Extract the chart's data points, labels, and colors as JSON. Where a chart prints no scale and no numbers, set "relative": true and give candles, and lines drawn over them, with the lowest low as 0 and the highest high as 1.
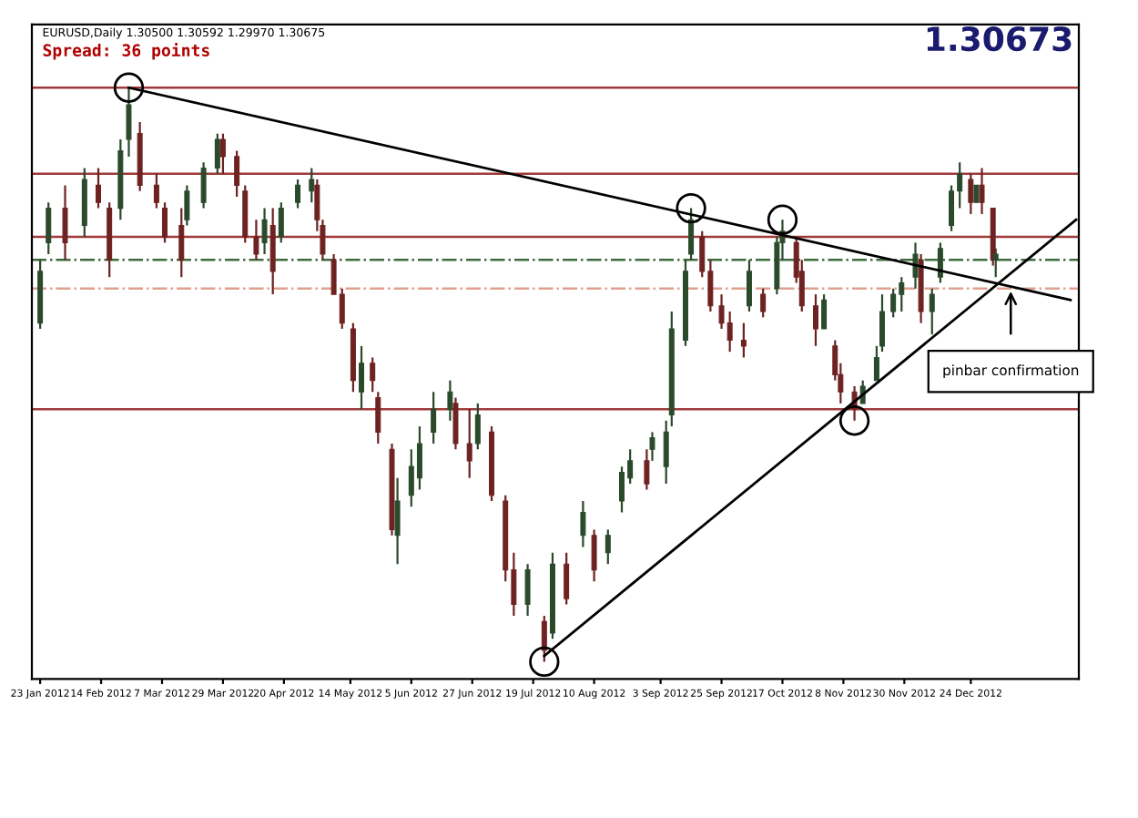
{
  "chart_data": {
    "type": "candlestick",
    "relative": true,
    "title": "EURUSD,Daily 1.30500 1.30592 1.29970 1.30675",
    "subtitle": "Spread: 36 points",
    "annotations": [
      "1.30673",
      "pinbar confirmation"
    ],
    "x": [
      "2012-01-23",
      "2012-01-26",
      "2012-02-01",
      "2012-02-08",
      "2012-02-13",
      "2012-02-17",
      "2012-02-21",
      "2012-02-24",
      "2012-02-28",
      "2012-03-05",
      "2012-03-08",
      "2012-03-14",
      "2012-03-16",
      "2012-03-22",
      "2012-03-27",
      "2012-03-29",
      "2012-04-03",
      "2012-04-06",
      "2012-04-10",
      "2012-04-13",
      "2012-04-16",
      "2012-04-19",
      "2012-04-25",
      "2012-04-30",
      "2012-05-02",
      "2012-05-04",
      "2012-05-08",
      "2012-05-11",
      "2012-05-15",
      "2012-05-18",
      "2012-05-22",
      "2012-05-24",
      "2012-05-29",
      "2012-05-31",
      "2012-06-05",
      "2012-06-08",
      "2012-06-13",
      "2012-06-19",
      "2012-06-21",
      "2012-06-26",
      "2012-06-29",
      "2012-07-04",
      "2012-07-09",
      "2012-07-12",
      "2012-07-17",
      "2012-07-23",
      "2012-07-26",
      "2012-07-31",
      "2012-08-06",
      "2012-08-10",
      "2012-08-15",
      "2012-08-20",
      "2012-08-23",
      "2012-08-29",
      "2012-08-31",
      "2012-09-05",
      "2012-09-07",
      "2012-09-12",
      "2012-09-14",
      "2012-09-18",
      "2012-09-21",
      "2012-09-25",
      "2012-09-28",
      "2012-10-03",
      "2012-10-05",
      "2012-10-10",
      "2012-10-15",
      "2012-10-17",
      "2012-10-22",
      "2012-10-24",
      "2012-10-29",
      "2012-11-01",
      "2012-11-05",
      "2012-11-07",
      "2012-11-12",
      "2012-11-15",
      "2012-11-20",
      "2012-11-22",
      "2012-11-26",
      "2012-11-29",
      "2012-12-04",
      "2012-12-06",
      "2012-12-10",
      "2012-12-13",
      "2012-12-17",
      "2012-12-20",
      "2012-12-24",
      "2012-12-26",
      "2012-12-28",
      "2013-01-01",
      "2013-01-02"
    ],
    "ohlc": [
      [
        0.59,
        0.7,
        0.58,
        0.68
      ],
      [
        0.73,
        0.8,
        0.71,
        0.79
      ],
      [
        0.79,
        0.83,
        0.7,
        0.73
      ],
      [
        0.76,
        0.86,
        0.74,
        0.84
      ],
      [
        0.83,
        0.86,
        0.79,
        0.8
      ],
      [
        0.79,
        0.8,
        0.67,
        0.7
      ],
      [
        0.79,
        0.91,
        0.77,
        0.89
      ],
      [
        0.91,
        1.0,
        0.88,
        0.97
      ],
      [
        0.92,
        0.94,
        0.82,
        0.83
      ],
      [
        0.83,
        0.85,
        0.79,
        0.8
      ],
      [
        0.79,
        0.8,
        0.73,
        0.74
      ],
      [
        0.76,
        0.79,
        0.67,
        0.7
      ],
      [
        0.77,
        0.83,
        0.76,
        0.82
      ],
      [
        0.8,
        0.87,
        0.79,
        0.86
      ],
      [
        0.86,
        0.92,
        0.85,
        0.91
      ],
      [
        0.91,
        0.92,
        0.85,
        0.88
      ],
      [
        0.88,
        0.89,
        0.81,
        0.83
      ],
      [
        0.82,
        0.83,
        0.73,
        0.74
      ],
      [
        0.74,
        0.77,
        0.7,
        0.71
      ],
      [
        0.73,
        0.79,
        0.71,
        0.77
      ],
      [
        0.76,
        0.79,
        0.64,
        0.68
      ],
      [
        0.74,
        0.8,
        0.73,
        0.79
      ],
      [
        0.8,
        0.84,
        0.79,
        0.83
      ],
      [
        0.82,
        0.86,
        0.8,
        0.84
      ],
      [
        0.83,
        0.84,
        0.75,
        0.77
      ],
      [
        0.76,
        0.77,
        0.7,
        0.71
      ],
      [
        0.7,
        0.71,
        0.64,
        0.64
      ],
      [
        0.64,
        0.65,
        0.58,
        0.59
      ],
      [
        0.58,
        0.59,
        0.47,
        0.49
      ],
      [
        0.47,
        0.55,
        0.44,
        0.52
      ],
      [
        0.52,
        0.53,
        0.47,
        0.49
      ],
      [
        0.46,
        0.47,
        0.38,
        0.4
      ],
      [
        0.37,
        0.38,
        0.22,
        0.23
      ],
      [
        0.22,
        0.32,
        0.17,
        0.28
      ],
      [
        0.29,
        0.37,
        0.27,
        0.34
      ],
      [
        0.32,
        0.41,
        0.3,
        0.38
      ],
      [
        0.4,
        0.47,
        0.38,
        0.44
      ],
      [
        0.44,
        0.49,
        0.42,
        0.47
      ],
      [
        0.45,
        0.46,
        0.37,
        0.38
      ],
      [
        0.38,
        0.44,
        0.32,
        0.35
      ],
      [
        0.38,
        0.45,
        0.37,
        0.43
      ],
      [
        0.4,
        0.41,
        0.28,
        0.29
      ],
      [
        0.28,
        0.29,
        0.14,
        0.16
      ],
      [
        0.16,
        0.19,
        0.08,
        0.1
      ],
      [
        0.1,
        0.17,
        0.08,
        0.16
      ],
      [
        0.07,
        0.08,
        0.0,
        0.02
      ],
      [
        0.05,
        0.19,
        0.04,
        0.17
      ],
      [
        0.17,
        0.19,
        0.1,
        0.11
      ],
      [
        0.22,
        0.28,
        0.2,
        0.26
      ],
      [
        0.22,
        0.23,
        0.14,
        0.16
      ],
      [
        0.19,
        0.23,
        0.17,
        0.22
      ],
      [
        0.28,
        0.34,
        0.26,
        0.33
      ],
      [
        0.32,
        0.37,
        0.31,
        0.35
      ],
      [
        0.35,
        0.37,
        0.3,
        0.31
      ],
      [
        0.37,
        0.4,
        0.35,
        0.39
      ],
      [
        0.34,
        0.42,
        0.31,
        0.4
      ],
      [
        0.43,
        0.61,
        0.41,
        0.58
      ],
      [
        0.56,
        0.7,
        0.55,
        0.68
      ],
      [
        0.71,
        0.79,
        0.7,
        0.77
      ],
      [
        0.74,
        0.75,
        0.67,
        0.68
      ],
      [
        0.68,
        0.7,
        0.61,
        0.62
      ],
      [
        0.62,
        0.64,
        0.58,
        0.59
      ],
      [
        0.59,
        0.61,
        0.54,
        0.56
      ],
      [
        0.56,
        0.59,
        0.53,
        0.55
      ],
      [
        0.62,
        0.7,
        0.61,
        0.68
      ],
      [
        0.64,
        0.65,
        0.6,
        0.61
      ],
      [
        0.65,
        0.74,
        0.64,
        0.73
      ],
      [
        0.73,
        0.77,
        0.7,
        0.75
      ],
      [
        0.73,
        0.74,
        0.66,
        0.67
      ],
      [
        0.68,
        0.7,
        0.61,
        0.62
      ],
      [
        0.62,
        0.64,
        0.55,
        0.58
      ],
      [
        0.58,
        0.64,
        0.58,
        0.63
      ],
      [
        0.55,
        0.56,
        0.49,
        0.5
      ],
      [
        0.5,
        0.52,
        0.45,
        0.47
      ],
      [
        0.47,
        0.48,
        0.42,
        0.44
      ],
      [
        0.45,
        0.49,
        0.45,
        0.48
      ],
      [
        0.49,
        0.55,
        0.49,
        0.53
      ],
      [
        0.55,
        0.64,
        0.54,
        0.61
      ],
      [
        0.61,
        0.65,
        0.6,
        0.64
      ],
      [
        0.64,
        0.67,
        0.61,
        0.66
      ],
      [
        0.67,
        0.73,
        0.65,
        0.71
      ],
      [
        0.7,
        0.71,
        0.59,
        0.61
      ],
      [
        0.61,
        0.65,
        0.57,
        0.64
      ],
      [
        0.67,
        0.73,
        0.66,
        0.72
      ],
      [
        0.76,
        0.83,
        0.75,
        0.82
      ],
      [
        0.82,
        0.87,
        0.79,
        0.85
      ],
      [
        0.84,
        0.85,
        0.78,
        0.8
      ],
      [
        0.8,
        0.83,
        0.8,
        0.83
      ],
      [
        0.83,
        0.86,
        0.78,
        0.8
      ],
      [
        0.79,
        0.79,
        0.69,
        0.7
      ],
      [
        0.7,
        0.72,
        0.67,
        0.71
      ]
    ],
    "colors": [
      "#2b4a2b",
      "#2b4a2b",
      "#6e2222",
      "#2b4a2b",
      "#6e2222",
      "#6e2222",
      "#2b4a2b",
      "#2b4a2b",
      "#6e2222",
      "#6e2222",
      "#6e2222",
      "#6e2222",
      "#2b4a2b",
      "#2b4a2b",
      "#2b4a2b",
      "#6e2222",
      "#6e2222",
      "#6e2222",
      "#6e2222",
      "#2b4a2b",
      "#6e2222",
      "#2b4a2b",
      "#2b4a2b",
      "#2b4a2b",
      "#6e2222",
      "#6e2222",
      "#6e2222",
      "#6e2222",
      "#6e2222",
      "#2b4a2b",
      "#6e2222",
      "#6e2222",
      "#6e2222",
      "#2b4a2b",
      "#2b4a2b",
      "#2b4a2b",
      "#2b4a2b",
      "#2b4a2b",
      "#6e2222",
      "#6e2222",
      "#2b4a2b",
      "#6e2222",
      "#6e2222",
      "#6e2222",
      "#2b4a2b",
      "#6e2222",
      "#2b4a2b",
      "#6e2222",
      "#2b4a2b",
      "#6e2222",
      "#2b4a2b",
      "#2b4a2b",
      "#2b4a2b",
      "#6e2222",
      "#2b4a2b",
      "#2b4a2b",
      "#2b4a2b",
      "#2b4a2b",
      "#2b4a2b",
      "#6e2222",
      "#6e2222",
      "#6e2222",
      "#6e2222",
      "#6e2222",
      "#2b4a2b",
      "#6e2222",
      "#2b4a2b",
      "#2b4a2b",
      "#6e2222",
      "#6e2222",
      "#6e2222",
      "#2b4a2b",
      "#6e2222",
      "#6e2222",
      "#6e2222",
      "#2b4a2b",
      "#2b4a2b",
      "#2b4a2b",
      "#2b4a2b",
      "#2b4a2b",
      "#2b4a2b",
      "#6e2222",
      "#2b4a2b",
      "#2b4a2b",
      "#2b4a2b",
      "#2b4a2b",
      "#6e2222",
      "#2b4a2b",
      "#6e2222",
      "#6e2222",
      "#2b4a2b"
    ],
    "series": [
      {
        "type": "line",
        "x": [
          "2012-02-24",
          "2013-01-29"
        ],
        "values": [
          1.0,
          0.63
        ],
        "color": "#000000"
      },
      {
        "type": "line",
        "x": [
          "2012-07-23",
          "2013-01-31"
        ],
        "values": [
          0.01,
          0.77
        ],
        "color": "#000000"
      },
      {
        "type": "scatter",
        "x": [
          "2012-02-24",
          "2012-07-23",
          "2012-09-14",
          "2012-10-17",
          "2012-11-12"
        ],
        "values": [
          1.0,
          0.0,
          0.79,
          0.77,
          0.42
        ],
        "color": "#000000",
        "marker": "circle"
      }
    ],
    "ref_lines": [
      {
        "axis": "y",
        "value": 1.0,
        "color": "#a03a3a",
        "line_style": "solid"
      },
      {
        "axis": "y",
        "value": 0.85,
        "color": "#a03a3a",
        "line_style": "solid"
      },
      {
        "axis": "y",
        "value": 0.74,
        "color": "#a03a3a",
        "line_style": "solid"
      },
      {
        "axis": "y",
        "value": 0.44,
        "color": "#a03a3a",
        "line_style": "solid"
      },
      {
        "axis": "y",
        "value": 0.7,
        "color": "#3d6b3d",
        "line_style": "dashdot"
      },
      {
        "axis": "y",
        "value": 0.65,
        "color": "#e0a090",
        "line_style": "dashdot"
      }
    ],
    "xlim": [
      "2012-01-20",
      "2013-02-01"
    ],
    "xticks": [
      {
        "value": "2012-01-23",
        "label": "23 Jan 2012"
      },
      {
        "value": "2012-02-14",
        "label": "14 Feb 2012"
      },
      {
        "value": "2012-03-07",
        "label": "7 Mar 2012"
      },
      {
        "value": "2012-03-29",
        "label": "29 Mar 2012"
      },
      {
        "value": "2012-04-20",
        "label": "20 Apr 2012"
      },
      {
        "value": "2012-05-14",
        "label": "14 May 2012"
      },
      {
        "value": "2012-06-05",
        "label": "5 Jun 2012"
      },
      {
        "value": "2012-06-27",
        "label": "27 Jun 2012"
      },
      {
        "value": "2012-07-19",
        "label": "19 Jul 2012"
      },
      {
        "value": "2012-08-10",
        "label": "10 Aug 2012"
      },
      {
        "value": "2012-09-03",
        "label": "3 Sep 2012"
      },
      {
        "value": "2012-09-25",
        "label": "25 Sep 2012"
      },
      {
        "value": "2012-10-17",
        "label": "17 Oct 2012"
      },
      {
        "value": "2012-11-08",
        "label": "8 Nov 2012"
      },
      {
        "value": "2012-11-30",
        "label": "30 Nov 2012"
      },
      {
        "value": "2012-12-24",
        "label": "24 Dec 2012"
      }
    ],
    "grid": false,
    "legend": false,
    "tick_labels": "x"
  }
}
